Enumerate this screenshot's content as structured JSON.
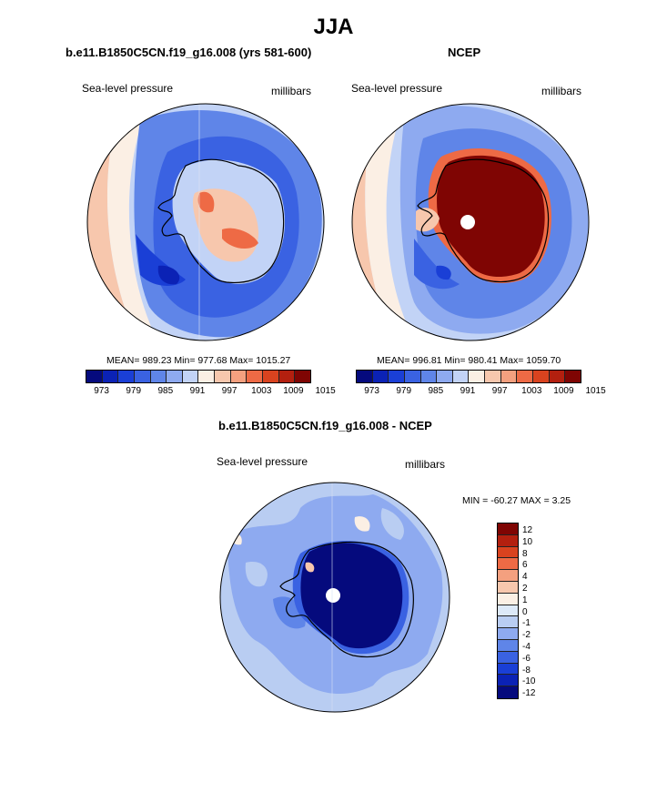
{
  "title": "JJA",
  "panels": [
    {
      "title": "b.e11.B1850C5CN.f19_g16.008 (yrs 581-600)",
      "variable": "Sea-level pressure",
      "units": "millibars",
      "stats": "MEAN= 989.23  Min= 977.68  Max= 1015.27"
    },
    {
      "title": "NCEP",
      "variable": "Sea-level pressure",
      "units": "millibars",
      "stats": "MEAN= 996.81  Min= 980.41  Max= 1059.70"
    }
  ],
  "colorbar": {
    "colors": [
      "#050a7d",
      "#0b22b5",
      "#1a3fd6",
      "#3a62e2",
      "#5f85e8",
      "#8eaaf0",
      "#c2d3f6",
      "#fbefe4",
      "#f7c7ad",
      "#f4a07f",
      "#ee6a45",
      "#d9431f",
      "#b3200f",
      "#7f0503"
    ],
    "ticks": [
      "973",
      "979",
      "985",
      "991",
      "997",
      "1003",
      "1009",
      "1015"
    ]
  },
  "diff": {
    "title": "b.e11.B1850C5CN.f19_g16.008 - NCEP",
    "variable": "Sea-level pressure",
    "units": "millibars",
    "minmax": "MIN = -60.27 MAX =   3.25",
    "colors": [
      "#7f0503",
      "#b3200f",
      "#d9431f",
      "#ee6a45",
      "#f4a07f",
      "#f7c7ad",
      "#fbefe4",
      "#dde9f8",
      "#b9cdf2",
      "#8eaaf0",
      "#5f85e8",
      "#3a62e2",
      "#1a3fd6",
      "#0b22b5",
      "#050a7d"
    ],
    "labels": [
      "12",
      "10",
      "8",
      "6",
      "4",
      "2",
      "1",
      "0",
      "-1",
      "-2",
      "-4",
      "-6",
      "-8",
      "-10",
      "-12"
    ]
  }
}
